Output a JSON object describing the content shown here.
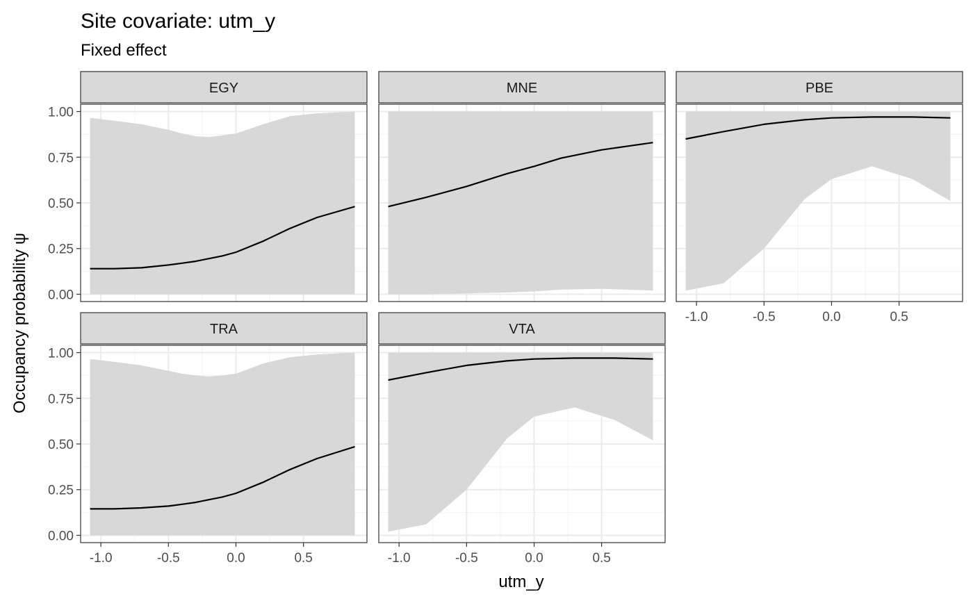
{
  "chart_data": {
    "type": "line",
    "title": "Site covariate: utm_y",
    "subtitle": "Fixed effect",
    "xlabel": "utm_y",
    "ylabel": "Occupancy probability  ψ",
    "xlim": [
      -1.15,
      0.97
    ],
    "ylim": [
      -0.04,
      1.04
    ],
    "x_ticks": [
      -1.0,
      -0.5,
      0.0,
      0.5
    ],
    "x_tick_labels": [
      "-1.0",
      "-0.5",
      "0.0",
      "0.5"
    ],
    "y_ticks": [
      0,
      0.25,
      0.5,
      0.75,
      1.0
    ],
    "y_tick_labels": [
      "0.00",
      "0.25",
      "0.50",
      "0.75",
      "1.00"
    ],
    "grid": true,
    "colors": {
      "ribbon": "#d6d6d6",
      "line": "#000000",
      "strip": "#d9d9d9",
      "grid_major": "#ebebeb",
      "grid_minor": "#f5f5f5"
    },
    "panels": [
      {
        "name": "EGY",
        "x": [
          -1.08,
          -0.9,
          -0.7,
          -0.5,
          -0.4,
          -0.3,
          -0.2,
          -0.1,
          0.0,
          0.2,
          0.4,
          0.6,
          0.88
        ],
        "y": [
          0.14,
          0.14,
          0.145,
          0.16,
          0.17,
          0.18,
          0.195,
          0.21,
          0.23,
          0.29,
          0.36,
          0.42,
          0.48
        ],
        "lower": [
          0,
          0,
          0,
          0,
          0,
          0,
          0,
          0,
          0,
          0,
          0,
          0,
          0
        ],
        "upper": [
          0.965,
          0.95,
          0.93,
          0.9,
          0.88,
          0.865,
          0.86,
          0.87,
          0.88,
          0.93,
          0.975,
          0.99,
          1.0
        ]
      },
      {
        "name": "MNE",
        "x": [
          -1.08,
          -0.8,
          -0.5,
          -0.2,
          0.0,
          0.2,
          0.5,
          0.88
        ],
        "y": [
          0.48,
          0.53,
          0.59,
          0.66,
          0.7,
          0.745,
          0.79,
          0.83
        ],
        "lower": [
          0.0,
          0.0,
          0.005,
          0.01,
          0.015,
          0.025,
          0.03,
          0.02
        ],
        "upper": [
          1.0,
          1.0,
          1.0,
          1.0,
          1.0,
          1.0,
          1.0,
          1.0
        ]
      },
      {
        "name": "PBE",
        "x": [
          -1.08,
          -0.8,
          -0.5,
          -0.2,
          0.0,
          0.3,
          0.6,
          0.88
        ],
        "y": [
          0.85,
          0.89,
          0.93,
          0.955,
          0.965,
          0.97,
          0.97,
          0.965
        ],
        "lower": [
          0.02,
          0.06,
          0.25,
          0.52,
          0.63,
          0.7,
          0.63,
          0.51
        ],
        "upper": [
          1.0,
          1.0,
          1.0,
          1.0,
          1.0,
          1.0,
          1.0,
          1.0
        ]
      },
      {
        "name": "TRA",
        "x": [
          -1.08,
          -0.9,
          -0.7,
          -0.5,
          -0.4,
          -0.3,
          -0.2,
          -0.1,
          0.0,
          0.2,
          0.4,
          0.6,
          0.88
        ],
        "y": [
          0.145,
          0.145,
          0.15,
          0.16,
          0.17,
          0.18,
          0.195,
          0.21,
          0.23,
          0.29,
          0.36,
          0.42,
          0.485
        ],
        "lower": [
          0,
          0,
          0,
          0,
          0,
          0,
          0,
          0,
          0,
          0,
          0,
          0,
          0
        ],
        "upper": [
          0.965,
          0.95,
          0.93,
          0.9,
          0.885,
          0.875,
          0.87,
          0.875,
          0.885,
          0.94,
          0.975,
          0.99,
          1.0
        ]
      },
      {
        "name": "VTA",
        "x": [
          -1.08,
          -0.8,
          -0.5,
          -0.2,
          0.0,
          0.3,
          0.6,
          0.88
        ],
        "y": [
          0.85,
          0.89,
          0.93,
          0.955,
          0.965,
          0.97,
          0.97,
          0.965
        ],
        "lower": [
          0.02,
          0.06,
          0.25,
          0.53,
          0.65,
          0.7,
          0.63,
          0.52
        ],
        "upper": [
          1.0,
          1.0,
          1.0,
          1.0,
          1.0,
          1.0,
          1.0,
          1.0
        ]
      }
    ]
  }
}
